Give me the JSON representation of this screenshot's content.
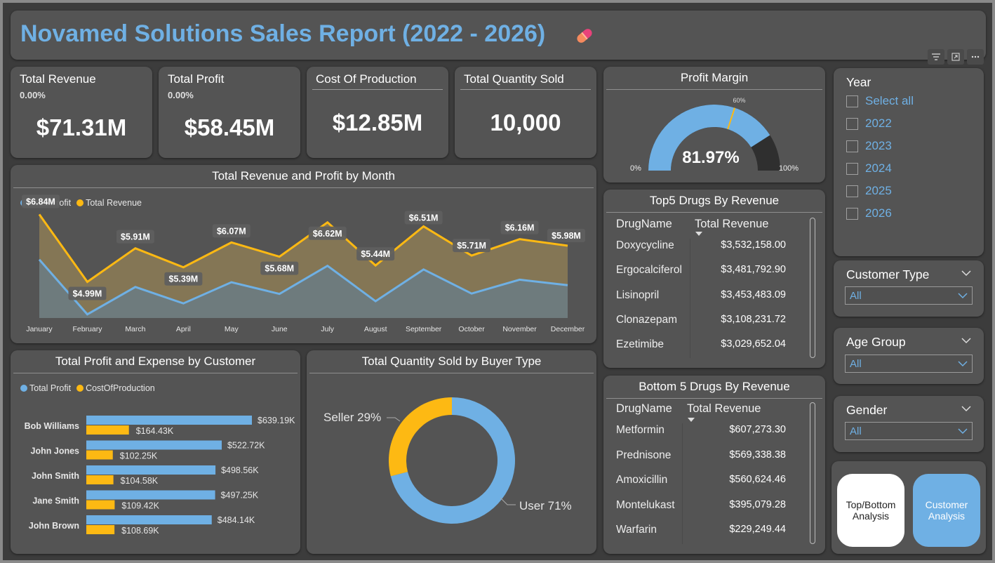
{
  "header": {
    "title": "Novamed Solutions Sales Report (2022 - 2026)"
  },
  "toolbar": {
    "filter_icon": "filter-icon",
    "focus_icon": "focus-mode-icon",
    "more_icon": "more-options-icon"
  },
  "kpis": {
    "revenue": {
      "label": "Total Revenue",
      "sub": "0.00%",
      "value": "$71.31M"
    },
    "profit": {
      "label": "Total Profit",
      "sub": "0.00%",
      "value": "$58.45M"
    },
    "cost": {
      "label": "Cost Of Production",
      "value": "$12.85M"
    },
    "qty": {
      "label": "Total Quantity Sold",
      "value": "10,000"
    }
  },
  "profit_margin": {
    "title": "Profit Margin",
    "value": "81.97%",
    "min": "0%",
    "max": "100%",
    "target": "60%",
    "value_fraction": 0.8197,
    "target_fraction": 0.6
  },
  "monthly": {
    "title": "Total Revenue and Profit by Month",
    "legend": [
      "Total Profit",
      "Total Revenue"
    ],
    "labels": [
      "$6.84M",
      "$4.99M",
      "$5.91M",
      "$5.39M",
      "$6.07M",
      "$5.68M",
      "$6.62M",
      "$5.44M",
      "$6.51M",
      "$5.71M",
      "$6.16M",
      "$5.98M"
    ]
  },
  "customer": {
    "title": "Total Profit and Expense by Customer",
    "legend": [
      "Total Profit",
      "CostOfProduction"
    ]
  },
  "buyer": {
    "title": "Total Quantity Sold by Buyer Type",
    "seller_label": "Seller 29%",
    "user_label": "User 71%"
  },
  "top5": {
    "title": "Top5 Drugs By Revenue",
    "col1": "DrugName",
    "col2": "Total Revenue",
    "rows": [
      {
        "name": "Doxycycline",
        "value": "$3,532,158.00"
      },
      {
        "name": "Ergocalciferol",
        "value": "$3,481,792.90"
      },
      {
        "name": "Lisinopril",
        "value": "$3,453,483.09"
      },
      {
        "name": "Clonazepam",
        "value": "$3,108,231.72"
      },
      {
        "name": "Ezetimibe",
        "value": "$3,029,652.04"
      }
    ]
  },
  "bottom5": {
    "title": "Bottom 5 Drugs By Revenue",
    "col1": "DrugName",
    "col2": "Total Revenue",
    "rows": [
      {
        "name": "Metformin",
        "value": "$607,273.30"
      },
      {
        "name": "Prednisone",
        "value": "$569,338.38"
      },
      {
        "name": "Amoxicillin",
        "value": "$560,624.46"
      },
      {
        "name": "Montelukast",
        "value": "$395,079.28"
      },
      {
        "name": "Warfarin",
        "value": "$229,249.44"
      }
    ]
  },
  "slicers": {
    "year": {
      "title": "Year",
      "options": [
        "Select all",
        "2022",
        "2023",
        "2024",
        "2025",
        "2026"
      ]
    },
    "customer_type": {
      "title": "Customer Type",
      "value": "All"
    },
    "age_group": {
      "title": "Age Group",
      "value": "All"
    },
    "gender": {
      "title": "Gender",
      "value": "All"
    }
  },
  "nav": {
    "top_bottom": "Top/Bottom Analysis",
    "customer": "Customer Analysis"
  },
  "colors": {
    "profit": "#6fb0e4",
    "revenue": "#fdb913",
    "card": "#545454",
    "title": "#6fb0e4"
  },
  "chart_data": [
    {
      "type": "area",
      "title": "Total Revenue and Profit by Month",
      "categories": [
        "January",
        "February",
        "March",
        "April",
        "May",
        "June",
        "July",
        "August",
        "September",
        "October",
        "November",
        "December"
      ],
      "series": [
        {
          "name": "Total Revenue",
          "values": [
            6.84,
            4.99,
            5.91,
            5.39,
            6.07,
            5.68,
            6.62,
            5.44,
            6.51,
            5.71,
            6.16,
            5.98
          ]
        },
        {
          "name": "Total Profit",
          "values": [
            5.6,
            4.1,
            4.85,
            4.4,
            4.98,
            4.66,
            5.43,
            4.46,
            5.33,
            4.67,
            5.05,
            4.9
          ]
        }
      ],
      "ylim": [
        4.0,
        7.0
      ],
      "legend": "top-left"
    },
    {
      "type": "bar",
      "title": "Total Profit and Expense by Customer",
      "categories": [
        "Bob Williams",
        "John Jones",
        "John Smith",
        "Jane Smith",
        "John Brown"
      ],
      "series": [
        {
          "name": "Total Profit",
          "values": [
            639.19,
            522.72,
            498.56,
            497.25,
            484.14
          ],
          "labels": [
            "$639.19K",
            "$522.72K",
            "$498.56K",
            "$497.25K",
            "$484.14K"
          ]
        },
        {
          "name": "CostOfProduction",
          "values": [
            164.43,
            102.25,
            104.58,
            109.42,
            108.69
          ],
          "labels": [
            "$164.43K",
            "$102.25K",
            "$104.58K",
            "$109.42K",
            "$108.69K"
          ]
        }
      ],
      "orientation": "horizontal",
      "legend": "top-left"
    },
    {
      "type": "pie",
      "title": "Total Quantity Sold by Buyer Type",
      "categories": [
        "User",
        "Seller"
      ],
      "values": [
        71,
        29
      ]
    }
  ]
}
